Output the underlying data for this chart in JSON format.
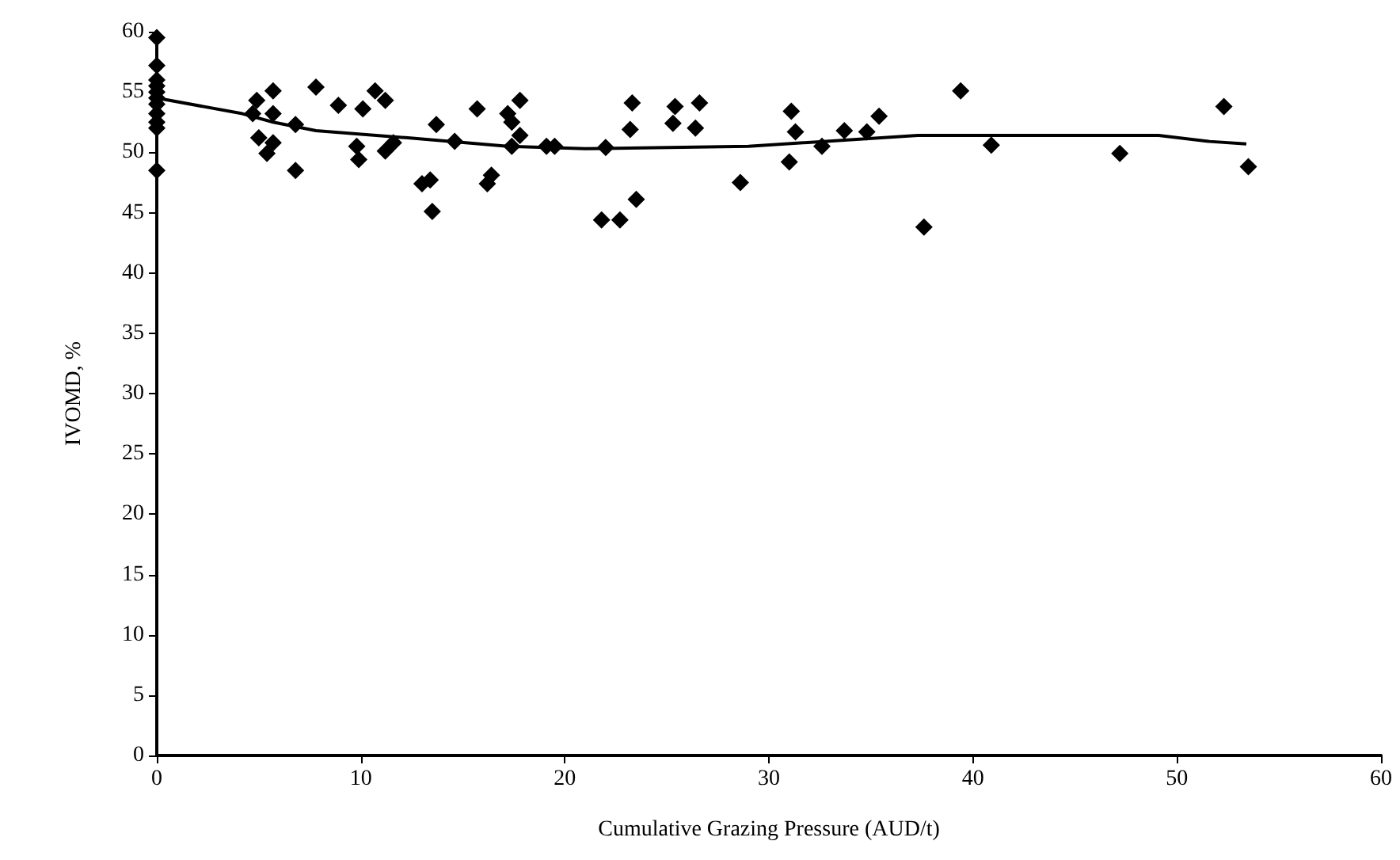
{
  "chart_data": {
    "type": "scatter",
    "xlabel": "Cumulative Grazing Pressure (AUD/t)",
    "ylabel": "IVOMD, %",
    "xlim": [
      0,
      60
    ],
    "xticks": [
      0,
      10,
      20,
      30,
      40,
      50,
      60
    ],
    "ylim": [
      0,
      60
    ],
    "yticks": [
      0,
      5,
      10,
      15,
      20,
      25,
      30,
      35,
      40,
      45,
      50,
      55,
      60
    ],
    "grid": false,
    "marker": "diamond",
    "series": [
      {
        "color": "#000000",
        "x": [
          0,
          0,
          0,
          0,
          0,
          0,
          0,
          0,
          0,
          0,
          0,
          4.9,
          5.7,
          4.7,
          5.7,
          5.0,
          5.7,
          5.4,
          6.8,
          6.8,
          7.8,
          8.9,
          10.1,
          10.7,
          11.2,
          9.8,
          9.9,
          11.2,
          11.6,
          13.4,
          13.0,
          13.5,
          13.7,
          14.6,
          15.7,
          16.4,
          16.2,
          17.2,
          17.4,
          17.8,
          17.4,
          17.8,
          19.1,
          19.5,
          22.0,
          23.2,
          23.3,
          25.4,
          25.3,
          26.6,
          26.4,
          28.6,
          31.1,
          31.3,
          31.0,
          32.6,
          33.7,
          34.8,
          35.4,
          39.4,
          23.5,
          21.8,
          22.7,
          37.6,
          40.9,
          47.2,
          52.3,
          53.5
        ],
        "values": [
          59.5,
          57.2,
          56,
          55.5,
          55,
          54.5,
          54,
          53.2,
          52.5,
          52,
          48.5,
          54.3,
          55.1,
          53.2,
          53.2,
          51.2,
          50.8,
          49.9,
          52.3,
          48.5,
          55.4,
          53.9,
          53.6,
          55.1,
          54.3,
          50.5,
          49.4,
          50.1,
          50.8,
          47.7,
          47.4,
          45.1,
          52.3,
          50.9,
          53.6,
          48.1,
          47.4,
          53.2,
          52.5,
          54.3,
          50.5,
          51.4,
          50.5,
          50.5,
          50.4,
          51.9,
          54.1,
          53.8,
          52.4,
          54.1,
          52.0,
          47.5,
          53.4,
          51.7,
          49.2,
          50.5,
          51.8,
          51.7,
          53.0,
          55.1,
          46.1,
          44.4,
          44.4,
          43.8,
          50.6,
          49.9,
          53.8,
          48.8
        ]
      },
      {
        "type": "line",
        "color": "#000000",
        "marker": "none",
        "x": [
          0,
          4.2,
          5.7,
          7.8,
          12.3,
          17.2,
          21,
          29,
          37.3,
          49.1,
          51.6,
          53.4
        ],
        "values": [
          54.5,
          53.2,
          52.5,
          51.8,
          51.2,
          50.5,
          50.3,
          50.5,
          51.4,
          51.4,
          50.9,
          50.7
        ]
      }
    ]
  }
}
